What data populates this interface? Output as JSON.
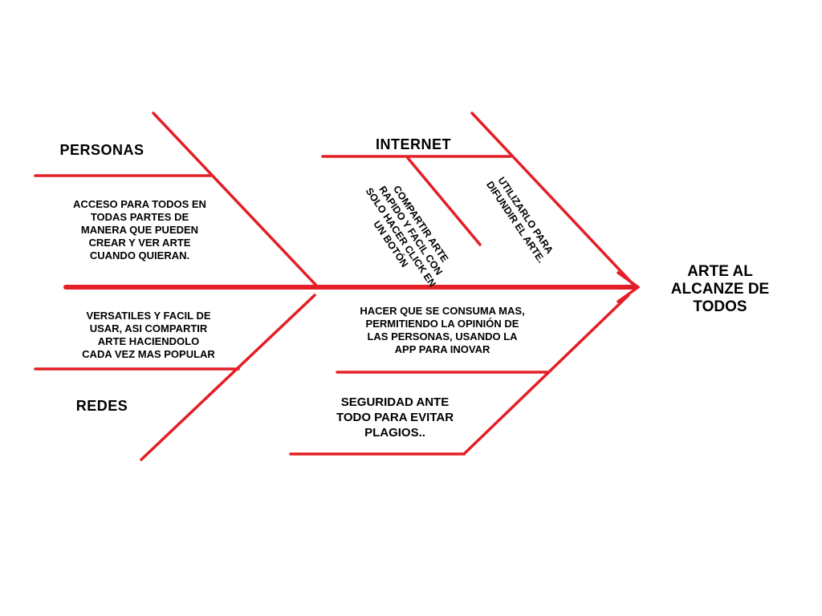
{
  "effect": "ARTE AL\nALCANZE DE\nTODOS",
  "categories": {
    "personas": "PERSONAS",
    "internet": "INTERNET",
    "redes": "REDES"
  },
  "causes": {
    "personas_acceso": "ACCESO PARA TODOS EN\nTODAS PARTES DE\nMANERA QUE PUEDEN\nCREAR Y VER ARTE\nCUANDO QUIERAN.",
    "internet_compartir": "COMPARTIR ARTE\nRAPIDO Y FACIL CON\nSOLO HACER CLICK EN\nUN BOTÓN",
    "internet_difundir": "UTILIZARLO PARA\nDIFUNDIR EL ARTE.",
    "redes_versatiles": "VERSATILES Y FACIL DE\nUSAR, ASI COMPARTIR\nARTE HACIENDOLO\nCADA VEZ MAS POPULAR",
    "consumo": "HACER QUE SE CONSUMA MAS,\nPERMITIENDO LA OPINIÓN DE\nLAS PERSONAS, USANDO LA\nAPP PARA INOVAR",
    "seguridad": "SEGURIDAD ANTE\nTODO PARA EVITAR\nPLAGIOS.."
  },
  "colors": {
    "line": "#e41e26",
    "text": "#000000",
    "background": "#ffffff"
  }
}
